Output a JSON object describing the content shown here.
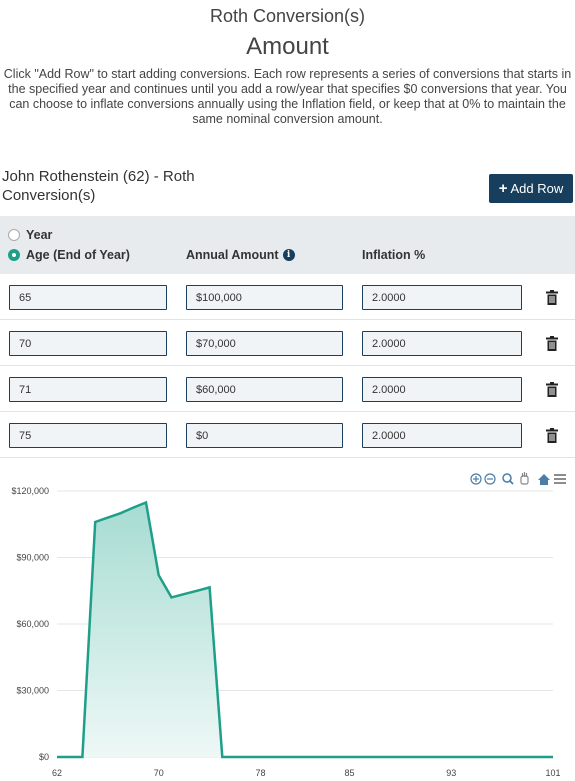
{
  "header": {
    "title": "Roth Conversion(s)",
    "subtitle": "Amount",
    "description": "Click \"Add Row\" to start adding conversions. Each row represents a series of conversions that starts in the specified year and continues until you add a row/year that specifies $0 conversions that year. You can choose to inflate conversions annually using the Inflation field, or keep that at 0% to maintain the same nominal conversion amount."
  },
  "owner_label": "John Rothenstein (62) - Roth Conversion(s)",
  "add_row_label": "Add Row",
  "table": {
    "radio_year": "Year",
    "radio_age": "Age (End of Year)",
    "selected": "age",
    "col_amount": "Annual Amount",
    "col_inflation": "Inflation %",
    "rows": [
      {
        "age": "65",
        "amount": "$100,000",
        "inflation": "2.0000"
      },
      {
        "age": "70",
        "amount": "$70,000",
        "inflation": "2.0000"
      },
      {
        "age": "71",
        "amount": "$60,000",
        "inflation": "2.0000"
      },
      {
        "age": "75",
        "amount": "$0",
        "inflation": "2.0000"
      }
    ]
  },
  "colors": {
    "accent": "#1f9f8a",
    "button": "#173e5c",
    "area_top": "#a6dcd2",
    "area_bottom": "#eef8f6"
  },
  "toolbar_icons": [
    "zoom-in-icon",
    "zoom-out-icon",
    "magnifier-icon",
    "pan-hand-icon",
    "home-icon",
    "menu-icon"
  ],
  "chart_data": {
    "type": "area",
    "x": [
      62,
      63,
      64,
      65,
      66,
      67,
      68,
      69,
      70,
      71,
      72,
      73,
      74,
      75,
      76,
      101
    ],
    "values": [
      0,
      0,
      0,
      106000,
      108000,
      110000,
      112500,
      114800,
      82000,
      72000,
      73500,
      75000,
      76500,
      0,
      0,
      0
    ],
    "xticks": [
      62,
      70,
      78,
      85,
      93,
      101
    ],
    "yticks": [
      "$0",
      "$30,000",
      "$60,000",
      "$90,000",
      "$120,000"
    ],
    "ytick_values": [
      0,
      30000,
      60000,
      90000,
      120000
    ],
    "ylim": [
      0,
      120000
    ],
    "xlim": [
      62,
      101
    ],
    "grid": true
  }
}
